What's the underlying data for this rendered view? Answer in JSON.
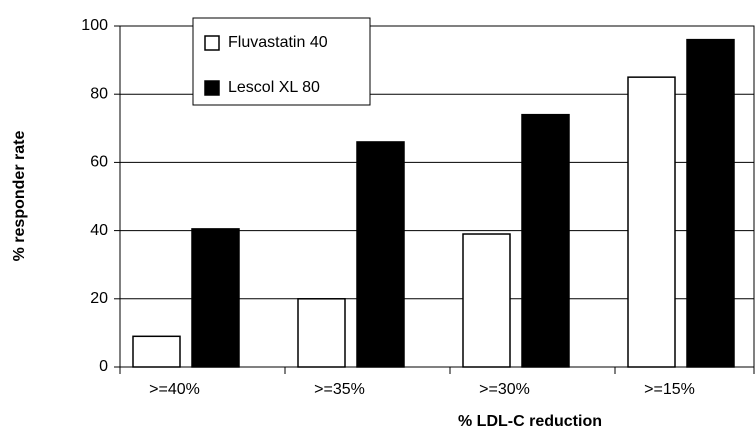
{
  "chart_data": {
    "type": "bar",
    "categories": [
      ">=40%",
      ">=35%",
      ">=30%",
      ">=15%"
    ],
    "series": [
      {
        "name": "Fluvastatin 40",
        "color": "#ffffff",
        "values": [
          9,
          20,
          39,
          85
        ]
      },
      {
        "name": "Lescol XL 80",
        "color": "#000000",
        "values": [
          40.5,
          66,
          74,
          96
        ]
      }
    ],
    "ylim": [
      0,
      100
    ],
    "yticks": [
      0,
      20,
      40,
      60,
      80,
      100
    ],
    "grid": true,
    "ylabel": "% responder rate",
    "xlabel": "%  LDL-C reduction",
    "legend": "top-left"
  }
}
